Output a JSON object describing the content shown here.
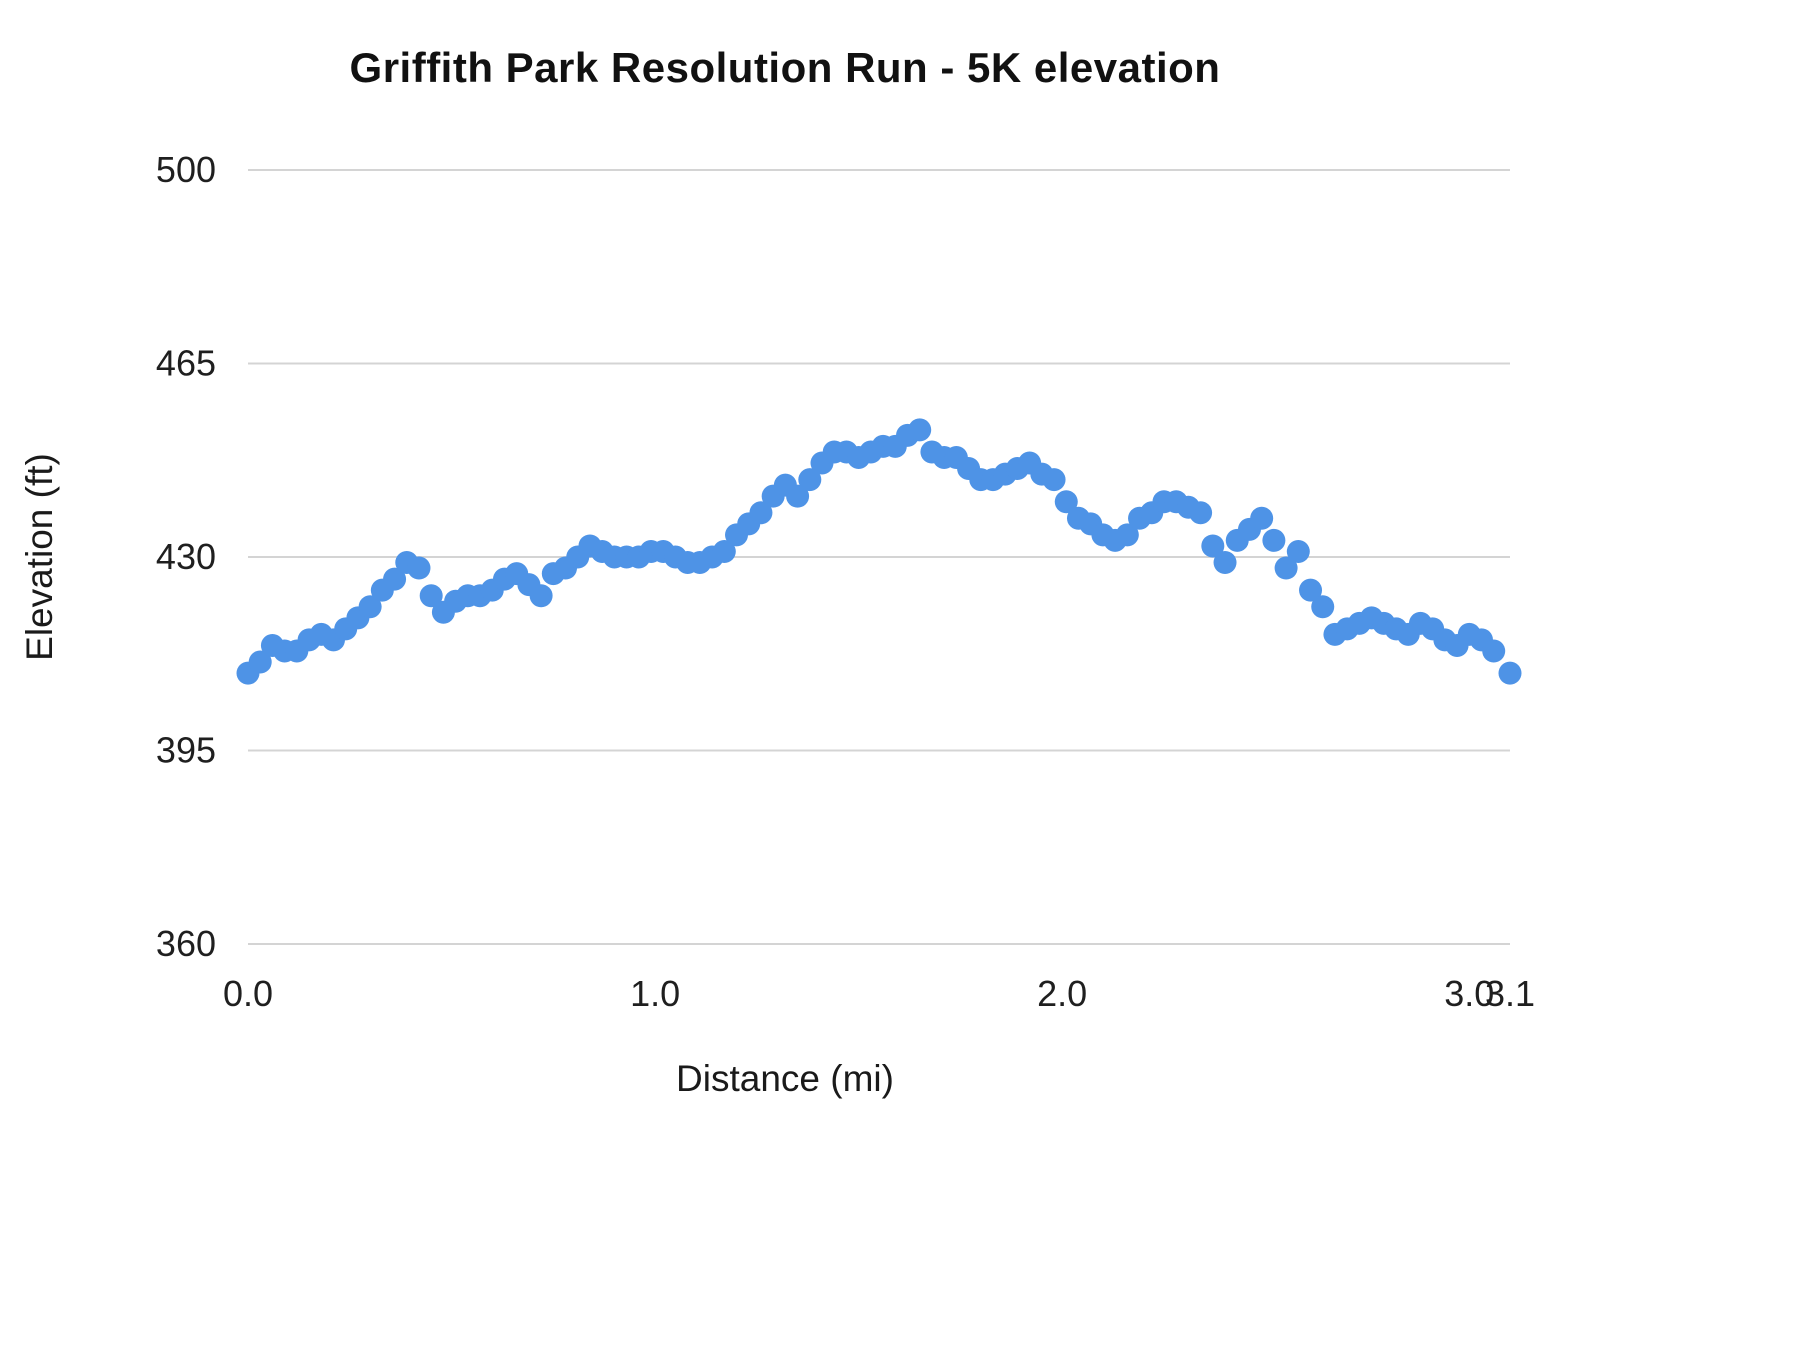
{
  "chart_data": {
    "type": "scatter",
    "title": "Griffith Park Resolution Run - 5K elevation",
    "xlabel": "Distance (mi)",
    "ylabel": "Elevation (ft)",
    "xlim": [
      0,
      3.1
    ],
    "ylim": [
      360,
      500
    ],
    "grid": "horizontal-only",
    "legend": "none",
    "point_color": "#4e93e6",
    "gridline_color": "#d4d4d4",
    "y_ticks": [
      {
        "value": 360,
        "label": "360"
      },
      {
        "value": 395,
        "label": "395"
      },
      {
        "value": 430,
        "label": "430"
      },
      {
        "value": 465,
        "label": "465"
      },
      {
        "value": 500,
        "label": "500"
      }
    ],
    "x_ticks": [
      {
        "value": 0.0,
        "label": "0.0"
      },
      {
        "value": 1.0,
        "label": "1.0"
      },
      {
        "value": 2.0,
        "label": "2.0"
      },
      {
        "value": 3.0,
        "label": "3.0"
      },
      {
        "value": 3.1,
        "label": "3.1"
      }
    ],
    "points": [
      [
        0.0,
        409
      ],
      [
        0.03,
        411
      ],
      [
        0.06,
        414
      ],
      [
        0.09,
        413
      ],
      [
        0.12,
        413
      ],
      [
        0.15,
        415
      ],
      [
        0.18,
        416
      ],
      [
        0.21,
        415
      ],
      [
        0.24,
        417
      ],
      [
        0.27,
        419
      ],
      [
        0.3,
        421
      ],
      [
        0.33,
        424
      ],
      [
        0.36,
        426
      ],
      [
        0.39,
        429
      ],
      [
        0.42,
        428
      ],
      [
        0.45,
        423
      ],
      [
        0.48,
        420
      ],
      [
        0.51,
        422
      ],
      [
        0.54,
        423
      ],
      [
        0.57,
        423
      ],
      [
        0.6,
        424
      ],
      [
        0.63,
        426
      ],
      [
        0.66,
        427
      ],
      [
        0.69,
        425
      ],
      [
        0.72,
        423
      ],
      [
        0.75,
        427
      ],
      [
        0.78,
        428
      ],
      [
        0.81,
        430
      ],
      [
        0.84,
        432
      ],
      [
        0.87,
        431
      ],
      [
        0.9,
        430
      ],
      [
        0.93,
        430
      ],
      [
        0.96,
        430
      ],
      [
        0.99,
        431
      ],
      [
        1.02,
        431
      ],
      [
        1.05,
        430
      ],
      [
        1.08,
        429
      ],
      [
        1.11,
        429
      ],
      [
        1.14,
        430
      ],
      [
        1.17,
        431
      ],
      [
        1.2,
        434
      ],
      [
        1.23,
        436
      ],
      [
        1.26,
        438
      ],
      [
        1.29,
        441
      ],
      [
        1.32,
        443
      ],
      [
        1.35,
        441
      ],
      [
        1.38,
        444
      ],
      [
        1.41,
        447
      ],
      [
        1.44,
        449
      ],
      [
        1.47,
        449
      ],
      [
        1.5,
        448
      ],
      [
        1.53,
        449
      ],
      [
        1.56,
        450
      ],
      [
        1.59,
        450
      ],
      [
        1.62,
        452
      ],
      [
        1.65,
        453
      ],
      [
        1.68,
        449
      ],
      [
        1.71,
        448
      ],
      [
        1.74,
        448
      ],
      [
        1.77,
        446
      ],
      [
        1.8,
        444
      ],
      [
        1.83,
        444
      ],
      [
        1.86,
        445
      ],
      [
        1.89,
        446
      ],
      [
        1.92,
        447
      ],
      [
        1.95,
        445
      ],
      [
        1.98,
        444
      ],
      [
        2.01,
        440
      ],
      [
        2.04,
        437
      ],
      [
        2.07,
        436
      ],
      [
        2.1,
        434
      ],
      [
        2.13,
        433
      ],
      [
        2.16,
        434
      ],
      [
        2.19,
        437
      ],
      [
        2.22,
        438
      ],
      [
        2.25,
        440
      ],
      [
        2.28,
        440
      ],
      [
        2.31,
        439
      ],
      [
        2.34,
        438
      ],
      [
        2.37,
        432
      ],
      [
        2.4,
        429
      ],
      [
        2.43,
        433
      ],
      [
        2.46,
        435
      ],
      [
        2.49,
        437
      ],
      [
        2.52,
        433
      ],
      [
        2.55,
        428
      ],
      [
        2.58,
        431
      ],
      [
        2.61,
        424
      ],
      [
        2.64,
        421
      ],
      [
        2.67,
        416
      ],
      [
        2.7,
        417
      ],
      [
        2.73,
        418
      ],
      [
        2.76,
        419
      ],
      [
        2.79,
        418
      ],
      [
        2.82,
        417
      ],
      [
        2.85,
        416
      ],
      [
        2.88,
        418
      ],
      [
        2.91,
        417
      ],
      [
        2.94,
        415
      ],
      [
        2.97,
        414
      ],
      [
        3.0,
        416
      ],
      [
        3.03,
        415
      ],
      [
        3.06,
        413
      ],
      [
        3.1,
        409
      ]
    ]
  }
}
